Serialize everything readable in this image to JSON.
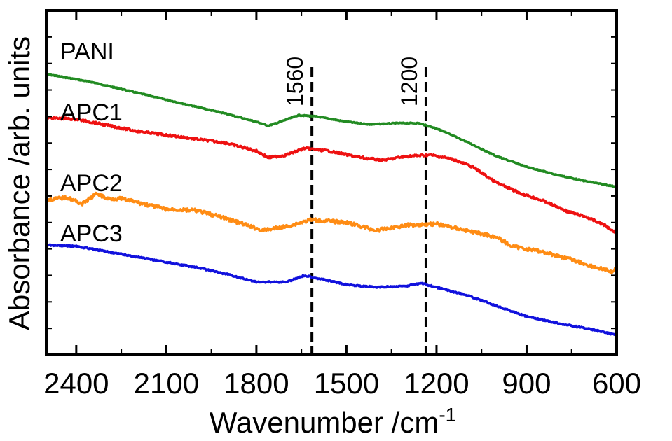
{
  "chart_data": {
    "type": "line",
    "xlabel": "Wavenumber /cm",
    "xlabel_superscript": "-1",
    "ylabel": "Absorbance /arb. units",
    "xlim": [
      2500,
      600
    ],
    "x_reversed": true,
    "x_ticks": [
      2400,
      2100,
      1800,
      1500,
      1200,
      900,
      600
    ],
    "y_ticks_labeled": false,
    "grid": false,
    "markers": [
      {
        "label": "1560",
        "x": 1615
      },
      {
        "label": "1200",
        "x": 1235
      }
    ],
    "series": [
      {
        "name": "PANI",
        "color": "#228B22",
        "noise": 0.6,
        "points": [
          [
            2500,
            9.1
          ],
          [
            2350,
            8.8
          ],
          [
            2200,
            8.4
          ],
          [
            2050,
            8.0
          ],
          [
            1900,
            7.6
          ],
          [
            1800,
            7.3
          ],
          [
            1760,
            7.15
          ],
          [
            1720,
            7.3
          ],
          [
            1660,
            7.55
          ],
          [
            1600,
            7.5
          ],
          [
            1500,
            7.3
          ],
          [
            1420,
            7.2
          ],
          [
            1330,
            7.25
          ],
          [
            1260,
            7.25
          ],
          [
            1200,
            7.05
          ],
          [
            1100,
            6.55
          ],
          [
            1000,
            6.0
          ],
          [
            900,
            5.6
          ],
          [
            800,
            5.3
          ],
          [
            700,
            5.05
          ],
          [
            600,
            4.85
          ]
        ]
      },
      {
        "name": "APC1",
        "color": "#EE1111",
        "noise": 1.4,
        "points": [
          [
            2500,
            7.45
          ],
          [
            2400,
            7.4
          ],
          [
            2200,
            6.95
          ],
          [
            2000,
            6.65
          ],
          [
            1900,
            6.5
          ],
          [
            1800,
            6.2
          ],
          [
            1760,
            5.95
          ],
          [
            1700,
            6.05
          ],
          [
            1640,
            6.3
          ],
          [
            1560,
            6.2
          ],
          [
            1450,
            5.95
          ],
          [
            1380,
            5.85
          ],
          [
            1300,
            6.0
          ],
          [
            1220,
            6.05
          ],
          [
            1150,
            5.9
          ],
          [
            1080,
            5.6
          ],
          [
            1000,
            5.0
          ],
          [
            920,
            4.6
          ],
          [
            840,
            4.3
          ],
          [
            760,
            3.9
          ],
          [
            700,
            3.7
          ],
          [
            640,
            3.4
          ],
          [
            600,
            3.1
          ]
        ]
      },
      {
        "name": "APC2",
        "color": "#FF8C14",
        "noise": 2.2,
        "points": [
          [
            2500,
            4.35
          ],
          [
            2430,
            4.45
          ],
          [
            2380,
            4.2
          ],
          [
            2330,
            4.6
          ],
          [
            2300,
            4.4
          ],
          [
            2250,
            4.4
          ],
          [
            2100,
            4.0
          ],
          [
            2000,
            3.95
          ],
          [
            1900,
            3.65
          ],
          [
            1780,
            3.2
          ],
          [
            1700,
            3.35
          ],
          [
            1620,
            3.6
          ],
          [
            1500,
            3.5
          ],
          [
            1400,
            3.2
          ],
          [
            1300,
            3.4
          ],
          [
            1200,
            3.45
          ],
          [
            1100,
            3.2
          ],
          [
            1000,
            2.95
          ],
          [
            950,
            2.6
          ],
          [
            850,
            2.4
          ],
          [
            750,
            2.1
          ],
          [
            700,
            1.9
          ],
          [
            650,
            1.75
          ],
          [
            610,
            1.6
          ],
          [
            600,
            1.9
          ]
        ]
      },
      {
        "name": "APC3",
        "color": "#1111DD",
        "noise": 0.9,
        "points": [
          [
            2500,
            2.65
          ],
          [
            2400,
            2.6
          ],
          [
            2300,
            2.4
          ],
          [
            2200,
            2.2
          ],
          [
            2100,
            2.0
          ],
          [
            2000,
            1.8
          ],
          [
            1900,
            1.55
          ],
          [
            1800,
            1.25
          ],
          [
            1700,
            1.25
          ],
          [
            1640,
            1.5
          ],
          [
            1600,
            1.4
          ],
          [
            1500,
            1.15
          ],
          [
            1400,
            1.05
          ],
          [
            1300,
            1.1
          ],
          [
            1250,
            1.2
          ],
          [
            1200,
            1.05
          ],
          [
            1100,
            0.75
          ],
          [
            1000,
            0.35
          ],
          [
            900,
            -0.05
          ],
          [
            800,
            -0.3
          ],
          [
            700,
            -0.5
          ],
          [
            600,
            -0.75
          ]
        ]
      }
    ],
    "ylim": [
      -1.5,
      11.5
    ]
  }
}
